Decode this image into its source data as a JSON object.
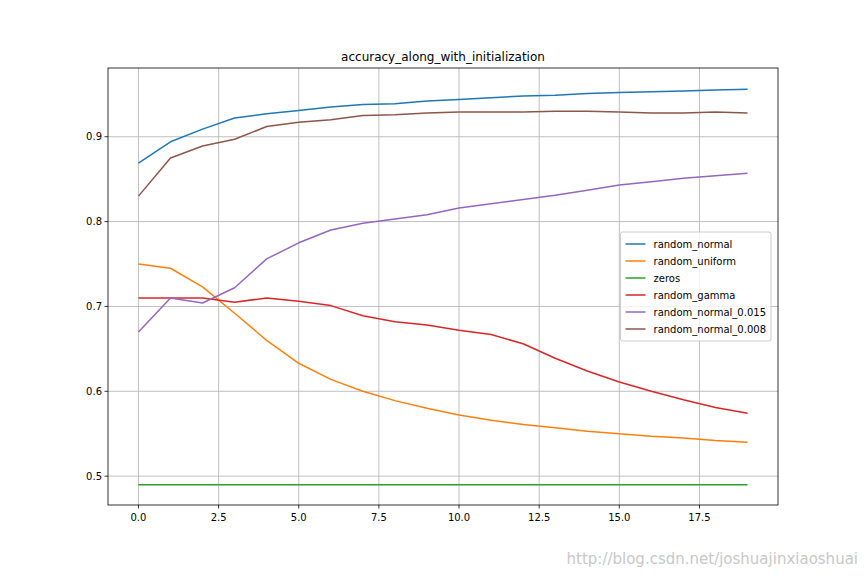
{
  "chart_data": {
    "type": "line",
    "title": "accuracy_along_with_initialization",
    "x": [
      0,
      1,
      2,
      3,
      4,
      5,
      6,
      7,
      8,
      9,
      10,
      11,
      12,
      13,
      14,
      15,
      16,
      17,
      18,
      19
    ],
    "series": [
      {
        "name": "random_normal",
        "color": "#1f77b4",
        "values": [
          0.869,
          0.894,
          0.909,
          0.922,
          0.927,
          0.931,
          0.935,
          0.938,
          0.939,
          0.942,
          0.944,
          0.946,
          0.948,
          0.949,
          0.951,
          0.952,
          0.953,
          0.954,
          0.955,
          0.956
        ]
      },
      {
        "name": "random_uniform",
        "color": "#ff7f0e",
        "values": [
          0.75,
          0.745,
          0.723,
          0.692,
          0.66,
          0.633,
          0.614,
          0.6,
          0.589,
          0.58,
          0.572,
          0.566,
          0.561,
          0.557,
          0.553,
          0.55,
          0.547,
          0.545,
          0.542,
          0.54
        ]
      },
      {
        "name": "zeros",
        "color": "#2ca02c",
        "values": [
          0.49,
          0.49,
          0.49,
          0.49,
          0.49,
          0.49,
          0.49,
          0.49,
          0.49,
          0.49,
          0.49,
          0.49,
          0.49,
          0.49,
          0.49,
          0.49,
          0.49,
          0.49,
          0.49,
          0.49
        ]
      },
      {
        "name": "random_gamma",
        "color": "#d62728",
        "values": [
          0.71,
          0.71,
          0.71,
          0.705,
          0.71,
          0.706,
          0.701,
          0.689,
          0.682,
          0.678,
          0.672,
          0.667,
          0.656,
          0.639,
          0.624,
          0.611,
          0.6,
          0.59,
          0.581,
          0.574
        ]
      },
      {
        "name": "random_normal_0.015",
        "color": "#9467bd",
        "values": [
          0.67,
          0.71,
          0.704,
          0.722,
          0.756,
          0.775,
          0.79,
          0.798,
          0.803,
          0.808,
          0.816,
          0.821,
          0.826,
          0.831,
          0.837,
          0.843,
          0.847,
          0.851,
          0.854,
          0.857
        ]
      },
      {
        "name": "random_normal_0.008",
        "color": "#8c564b",
        "values": [
          0.83,
          0.875,
          0.889,
          0.897,
          0.912,
          0.917,
          0.92,
          0.925,
          0.926,
          0.928,
          0.929,
          0.929,
          0.929,
          0.93,
          0.93,
          0.929,
          0.928,
          0.928,
          0.929,
          0.928
        ]
      }
    ],
    "xlim": [
      -0.95,
      19.95
    ],
    "ylim": [
      0.466,
      0.981
    ],
    "xticks": [
      {
        "value": 0,
        "label": "0.0"
      },
      {
        "value": 2.5,
        "label": "2.5"
      },
      {
        "value": 5,
        "label": "5.0"
      },
      {
        "value": 7.5,
        "label": "7.5"
      },
      {
        "value": 10,
        "label": "10.0"
      },
      {
        "value": 12.5,
        "label": "12.5"
      },
      {
        "value": 15,
        "label": "15.0"
      },
      {
        "value": 17.5,
        "label": "17.5"
      }
    ],
    "yticks": [
      0.5,
      0.6,
      0.7,
      0.8,
      0.9
    ],
    "grid": true,
    "legend": "center right",
    "annotations": [
      "http://blog.csdn.net/joshuajinxiaoshuai"
    ]
  }
}
